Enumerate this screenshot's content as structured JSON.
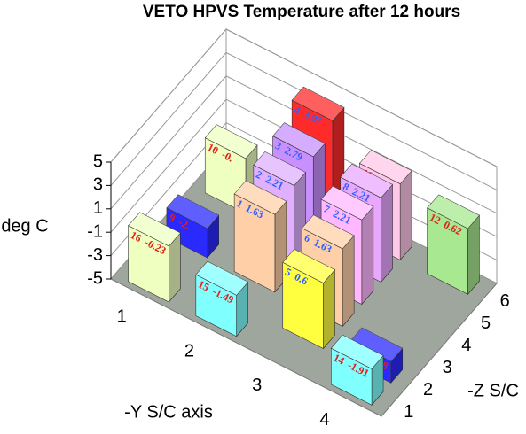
{
  "chart_data": {
    "type": "bar3d",
    "title": "VETO HPVS Temperature after 12 hours",
    "zlabel": "deg C",
    "xlabel": "-Y S/C axis",
    "ylabel": "-Z S/C",
    "categories": [
      "1",
      "2",
      "3",
      "4"
    ],
    "depth_categories": [
      "1",
      "2",
      "3",
      "4",
      "5",
      "6"
    ],
    "zlim": [
      -5,
      5
    ],
    "zticks": [
      -5,
      -3,
      -1,
      1,
      3,
      5
    ],
    "grid": true,
    "floor_color": "#9ea69e",
    "bars": [
      {
        "id": "16",
        "x": 1,
        "depth": 1,
        "value": -0.23,
        "color": "#eeffc0",
        "label_color": "#e02020"
      },
      {
        "id": "9",
        "x": 1,
        "depth": 3,
        "value": -2.5,
        "value_label": "-2.",
        "color": "#2a2aff",
        "label_color": "#e02020"
      },
      {
        "id": "10",
        "x": 1,
        "depth": 5,
        "value": -0.3,
        "value_label": "-0.",
        "color": "#eeffc0",
        "label_color": "#e02020"
      },
      {
        "id": "15",
        "x": 2,
        "depth": 1,
        "value": -1.49,
        "color": "#80ffff",
        "label_color": "#e02020"
      },
      {
        "id": "1",
        "x": 2,
        "depth": 3,
        "value": 1.63,
        "color": "#ffd0a8",
        "label_color": "#3060ff"
      },
      {
        "id": "2",
        "x": 2,
        "depth": 4,
        "value": 2.21,
        "color": "#e0b0ff",
        "label_color": "#3060ff"
      },
      {
        "id": "3",
        "x": 2,
        "depth": 5,
        "value": 2.79,
        "color": "#c890ff",
        "label_color": "#3060ff"
      },
      {
        "id": "4",
        "x": 2,
        "depth": 6,
        "value": 3.97,
        "color": "#ff2a2a",
        "label_color": "#3060ff"
      },
      {
        "id": "5",
        "x": 3,
        "depth": 2,
        "value": 0.6,
        "color": "#ffff40",
        "label_color": "#3060ff"
      },
      {
        "id": "6",
        "x": 3,
        "depth": 3,
        "value": 1.63,
        "color": "#ffd0a8",
        "label_color": "#3060ff"
      },
      {
        "id": "7",
        "x": 3,
        "depth": 4,
        "value": 2.21,
        "color": "#ffb8ff",
        "label_color": "#3060ff"
      },
      {
        "id": "8",
        "x": 3,
        "depth": 5,
        "value": 2.21,
        "color": "#e8a8ff",
        "label_color": "#3060ff"
      },
      {
        "id": "19",
        "x": 3,
        "depth": 6,
        "value": 1.5,
        "color": "#ffc8e8",
        "label_color": "#e02020"
      },
      {
        "id": "14",
        "x": 4,
        "depth": 1,
        "value": -1.91,
        "color": "#80ffff",
        "label_color": "#e02020"
      },
      {
        "id": "13",
        "x": 4,
        "depth": 2,
        "value": -3.18,
        "color": "#2a2aff",
        "label_color": "#e02020"
      },
      {
        "id": "12",
        "x": 4,
        "depth": 6,
        "value": 0.62,
        "color": "#a8e890",
        "label_color": "#e02020"
      }
    ]
  }
}
